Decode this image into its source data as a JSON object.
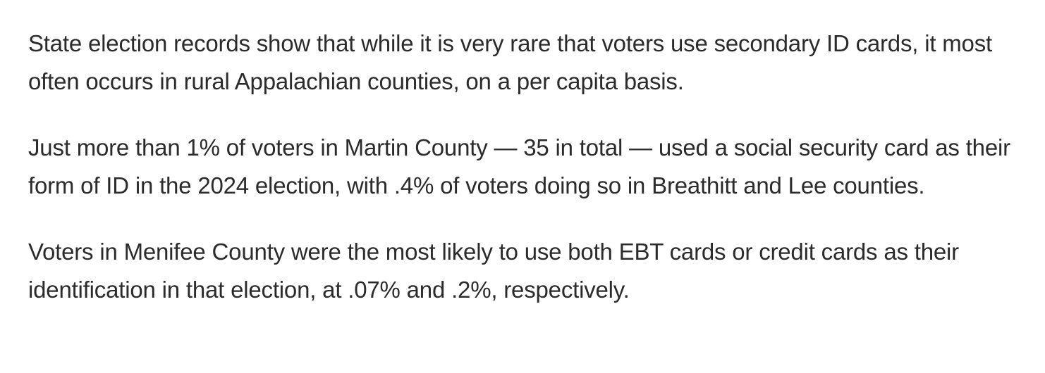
{
  "article": {
    "paragraphs": [
      "State election records show that while it is very rare that voters use secondary ID cards, it most often occurs in rural Appalachian counties, on a per capita basis.",
      "Just more than 1% of voters in Martin County — 35 in total — used a social security card as their form of ID in the 2024 election, with .4% of voters doing so in Breathitt and Lee counties.",
      "Voters in Menifee County were the most likely to use both EBT cards or credit cards as their identification in that election, at .07% and .2%, respectively."
    ]
  },
  "colors": {
    "text": "#2b2b2b",
    "background": "#ffffff"
  }
}
